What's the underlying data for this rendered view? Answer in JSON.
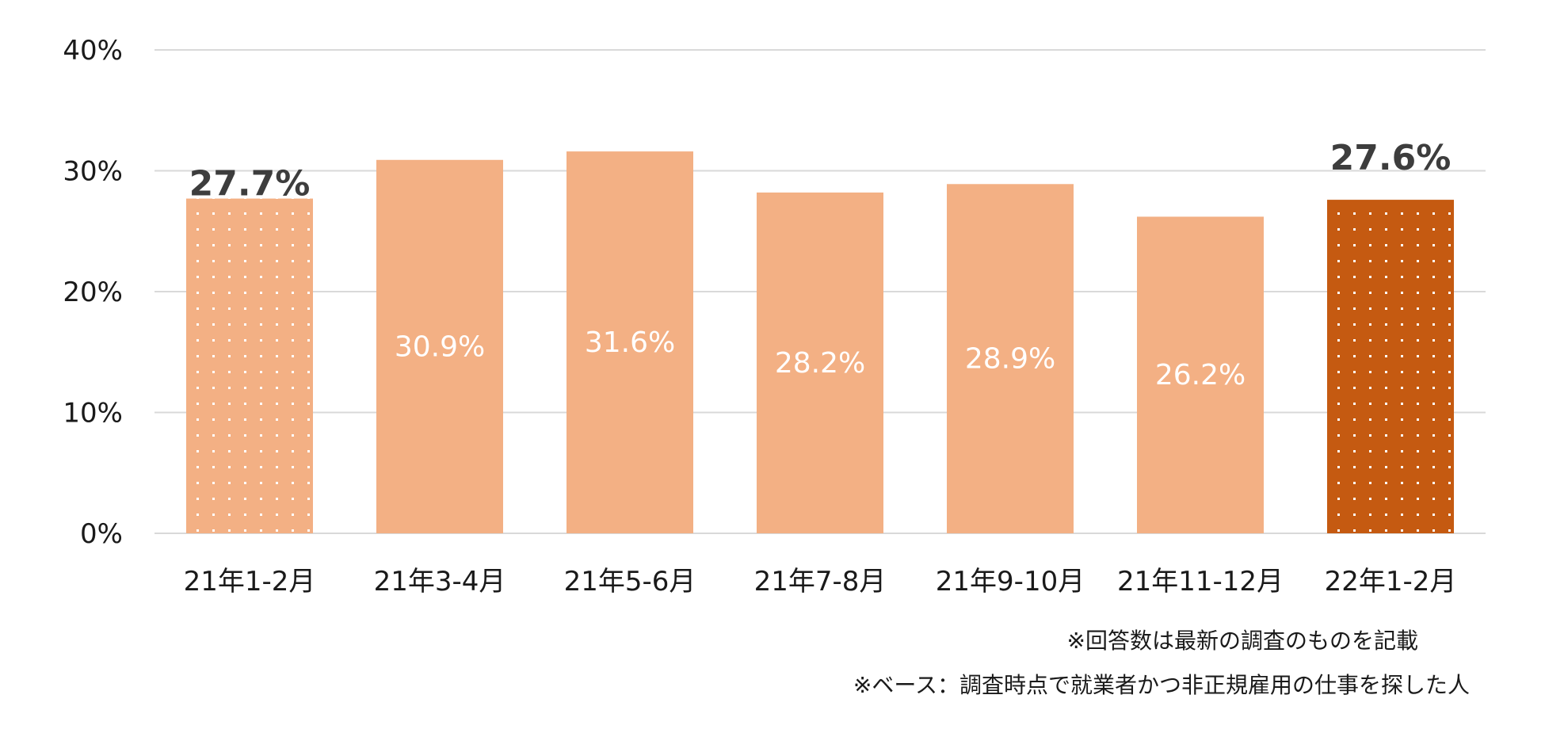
{
  "chart_data": {
    "type": "bar",
    "categories": [
      "21年1-2月",
      "21年3-4月",
      "21年5-6月",
      "21年7-8月",
      "21年9-10月",
      "21年11-12月",
      "22年1-2月"
    ],
    "values": [
      27.7,
      30.9,
      31.6,
      28.2,
      28.9,
      26.2,
      27.6
    ],
    "data_labels": [
      "27.7%",
      "30.9%",
      "31.6%",
      "28.2%",
      "28.9%",
      "26.2%",
      "27.6%"
    ],
    "highlighted": [
      0,
      6
    ],
    "ylim": [
      0,
      40
    ],
    "yticks": [
      "0%",
      "10%",
      "20%",
      "30%",
      "40%"
    ],
    "grid": true,
    "colors": {
      "bar": "#f3b084",
      "bar_highlight_last": "#c55a11",
      "dots": "#ffffff",
      "grid": "#d9d9d9",
      "highlight_label": "#3d3d3d"
    }
  },
  "notes": {
    "note1": "※回答数は最新の調査のものを記載",
    "note2": "※ベース：調査時点で就業者かつ非正規雇用の仕事を探した人"
  }
}
